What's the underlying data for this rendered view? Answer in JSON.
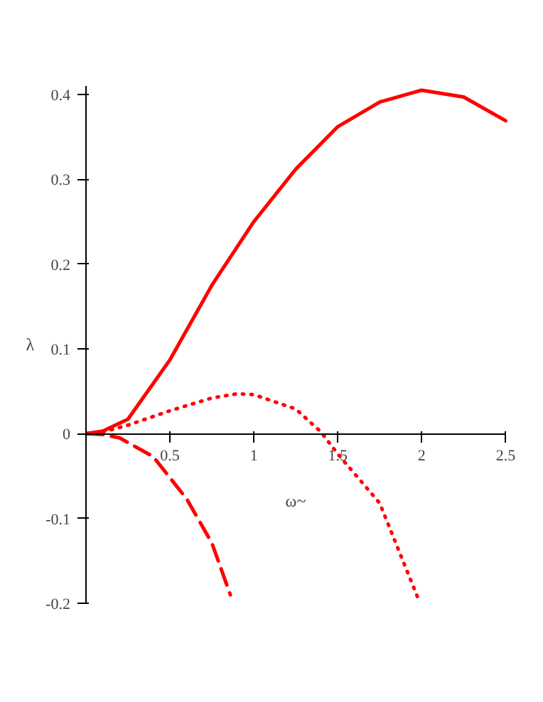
{
  "chart_data": {
    "type": "line",
    "xlabel": "ω~",
    "ylabel": "λ",
    "xlim": [
      0,
      2.5
    ],
    "ylim": [
      -0.2,
      0.41
    ],
    "xticks": [
      0.5,
      1,
      1.5,
      2,
      2.5
    ],
    "yticks": [
      -0.2,
      -0.1,
      0,
      0.1,
      0.2,
      0.3,
      0.4
    ],
    "grid": false,
    "series": [
      {
        "color": "#ff0000",
        "line_style": "solid",
        "x": [
          0,
          0.1,
          0.25,
          0.5,
          0.75,
          1,
          1.25,
          1.5,
          1.75,
          2,
          2.25,
          2.5
        ],
        "values": [
          0,
          0.003,
          0.017,
          0.087,
          0.175,
          0.25,
          0.312,
          0.362,
          0.391,
          0.405,
          0.397,
          0.369
        ]
      },
      {
        "color": "#ff0000",
        "line_style": "dotted",
        "x": [
          0,
          0.1,
          0.25,
          0.5,
          0.75,
          0.9,
          1,
          1.25,
          1.4,
          1.5,
          1.75,
          1.98
        ],
        "values": [
          0,
          0.002,
          0.01,
          0.027,
          0.042,
          0.047,
          0.046,
          0.029,
          0.002,
          -0.024,
          -0.082,
          -0.195
        ]
      },
      {
        "color": "#ff0000",
        "line_style": "dashed",
        "x": [
          0,
          0.1,
          0.2,
          0.4,
          0.6,
          0.75,
          0.86
        ],
        "values": [
          0,
          -0.001,
          -0.005,
          -0.027,
          -0.077,
          -0.129,
          -0.19
        ]
      }
    ]
  }
}
